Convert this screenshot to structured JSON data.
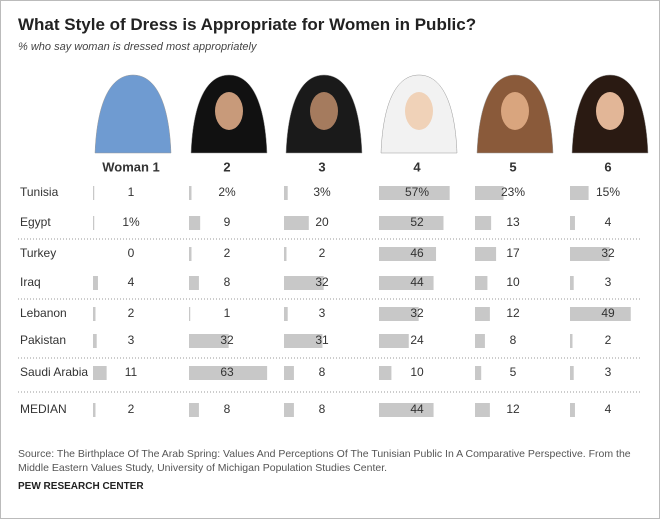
{
  "chart_data": {
    "type": "bar",
    "title": "What Style of Dress is Appropriate for Women in Public?",
    "subtitle": "% who say woman is dressed most appropriately",
    "categories": [
      "Tunisia",
      "Egypt",
      "Turkey",
      "Iraq",
      "Lebanon",
      "Pakistan",
      "Saudi Arabia",
      "MEDIAN"
    ],
    "series": [
      {
        "name": "Woman 1",
        "color": "#c8c8c8",
        "values": [
          1,
          1,
          0,
          4,
          2,
          3,
          11,
          2
        ],
        "value_labels": [
          "1",
          "1%",
          "0",
          "4",
          "2",
          "3",
          "11",
          "2"
        ]
      },
      {
        "name": "2",
        "color": "#c8c8c8",
        "values": [
          2,
          9,
          2,
          8,
          1,
          32,
          63,
          8
        ],
        "value_labels": [
          "2%",
          "9",
          "2",
          "8",
          "1",
          "32",
          "63",
          "8"
        ]
      },
      {
        "name": "3",
        "color": "#c8c8c8",
        "values": [
          3,
          20,
          2,
          32,
          3,
          31,
          8,
          8
        ],
        "value_labels": [
          "3%",
          "20",
          "2",
          "32",
          "3",
          "31",
          "8",
          "8"
        ]
      },
      {
        "name": "4",
        "color": "#c8c8c8",
        "values": [
          57,
          52,
          46,
          44,
          32,
          24,
          10,
          44
        ],
        "value_labels": [
          "57%",
          "52",
          "46",
          "44",
          "32",
          "24",
          "10",
          "44"
        ]
      },
      {
        "name": "5",
        "color": "#c8c8c8",
        "values": [
          23,
          13,
          17,
          10,
          12,
          8,
          5,
          12
        ],
        "value_labels": [
          "23%",
          "13",
          "17",
          "10",
          "12",
          "8",
          "5",
          "12"
        ]
      },
      {
        "name": "6",
        "color": "#c8c8c8",
        "values": [
          15,
          4,
          32,
          3,
          49,
          2,
          3,
          4
        ],
        "value_labels": [
          "15%",
          "4",
          "32",
          "3",
          "49",
          "2",
          "3",
          "4"
        ]
      }
    ],
    "source": "Source: The Birthplace Of The Arab Spring: Values And Perceptions Of The Tunisian Public In A Comparative Perspective. From the Middle Eastern Values Study, University of Michigan Population Studies Center.",
    "organization": "PEW RESEARCH CENTER"
  }
}
